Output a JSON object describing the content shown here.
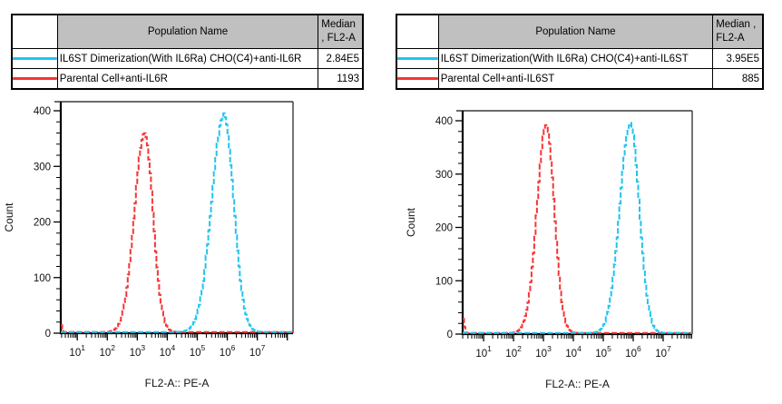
{
  "report": {
    "panels": [
      {
        "id": "left",
        "table": {
          "headers": {
            "population": "Population Name",
            "median_line1": "Median",
            "median_line2": ", FL2-A"
          },
          "rows": [
            {
              "swatch_color": "#1fc4f0",
              "name": "IL6ST Dimerization(With IL6Ra) CHO(C4)+anti-IL6R",
              "median": "2.84E5"
            },
            {
              "swatch_color": "#f63535",
              "name": "Parental Cell+anti-IL6R",
              "median": "1193"
            }
          ]
        }
      },
      {
        "id": "right",
        "table": {
          "headers": {
            "population": "Population Name",
            "median_line1": "Median ,",
            "median_line2": "FL2-A"
          },
          "rows": [
            {
              "swatch_color": "#1fc4f0",
              "name": "IL6ST Dimerization(With IL6Ra) CHO(C4)+anti-IL6ST",
              "median": "3.95E5"
            },
            {
              "swatch_color": "#f63535",
              "name": "Parental Cell+anti-IL6ST",
              "median": "885"
            }
          ]
        }
      }
    ]
  },
  "chart_data": [
    {
      "type": "line",
      "subtype": "flow-cytometry-histogram",
      "title": "",
      "xlabel": "FL2-A:: PE-A",
      "ylabel": "Count",
      "x_scale": "log10",
      "x_range_exponent": [
        0.45,
        8.19
      ],
      "x_decades_labeled": [
        1,
        2,
        3,
        4,
        5,
        6,
        7
      ],
      "ylim": [
        0,
        400
      ],
      "y_ticks": [
        0,
        100,
        200,
        300,
        400
      ],
      "y_minor_step": 20,
      "grid": false,
      "legend_position": "table-above",
      "line_style": "dashed-step",
      "series": [
        {
          "name": "Parental Cell+anti-IL6R",
          "color": "#f63535",
          "median_fl2a": "1193",
          "peak_center_exponent": 3.22,
          "peak_height_count": 356,
          "sigma_left": 0.34,
          "sigma_right": 0.28,
          "baseline_count": 2,
          "left_edge_spike_count": 13
        },
        {
          "name": "IL6ST Dimerization(With IL6Ra) CHO(C4)+anti-IL6R",
          "color": "#1fc4f0",
          "median_fl2a": "2.84E5",
          "peak_center_exponent": 5.86,
          "peak_height_count": 391,
          "sigma_left": 0.4,
          "sigma_right": 0.33,
          "baseline_count": 2,
          "left_edge_spike_count": 0
        }
      ]
    },
    {
      "type": "line",
      "subtype": "flow-cytometry-histogram",
      "title": "",
      "xlabel": "FL2-A:: PE-A",
      "ylabel": "Count",
      "x_scale": "log10",
      "x_range_exponent": [
        0.3,
        7.97
      ],
      "x_decades_labeled": [
        1,
        2,
        3,
        4,
        5,
        6,
        7
      ],
      "ylim": [
        0,
        400
      ],
      "y_ticks": [
        0,
        100,
        200,
        300,
        400
      ],
      "y_minor_step": 20,
      "grid": false,
      "legend_position": "table-above",
      "line_style": "dashed-step",
      "series": [
        {
          "name": "Parental Cell+anti-IL6ST",
          "color": "#f63535",
          "median_fl2a": "885",
          "peak_center_exponent": 3.07,
          "peak_height_count": 389,
          "sigma_left": 0.31,
          "sigma_right": 0.27,
          "baseline_count": 2,
          "left_edge_spike_count": 26
        },
        {
          "name": "IL6ST Dimerization(With IL6Ra) CHO(C4)+anti-IL6ST",
          "color": "#1fc4f0",
          "median_fl2a": "3.95E5",
          "peak_center_exponent": 5.88,
          "peak_height_count": 393,
          "sigma_left": 0.35,
          "sigma_right": 0.3,
          "baseline_count": 2,
          "left_edge_spike_count": 0
        }
      ]
    }
  ]
}
